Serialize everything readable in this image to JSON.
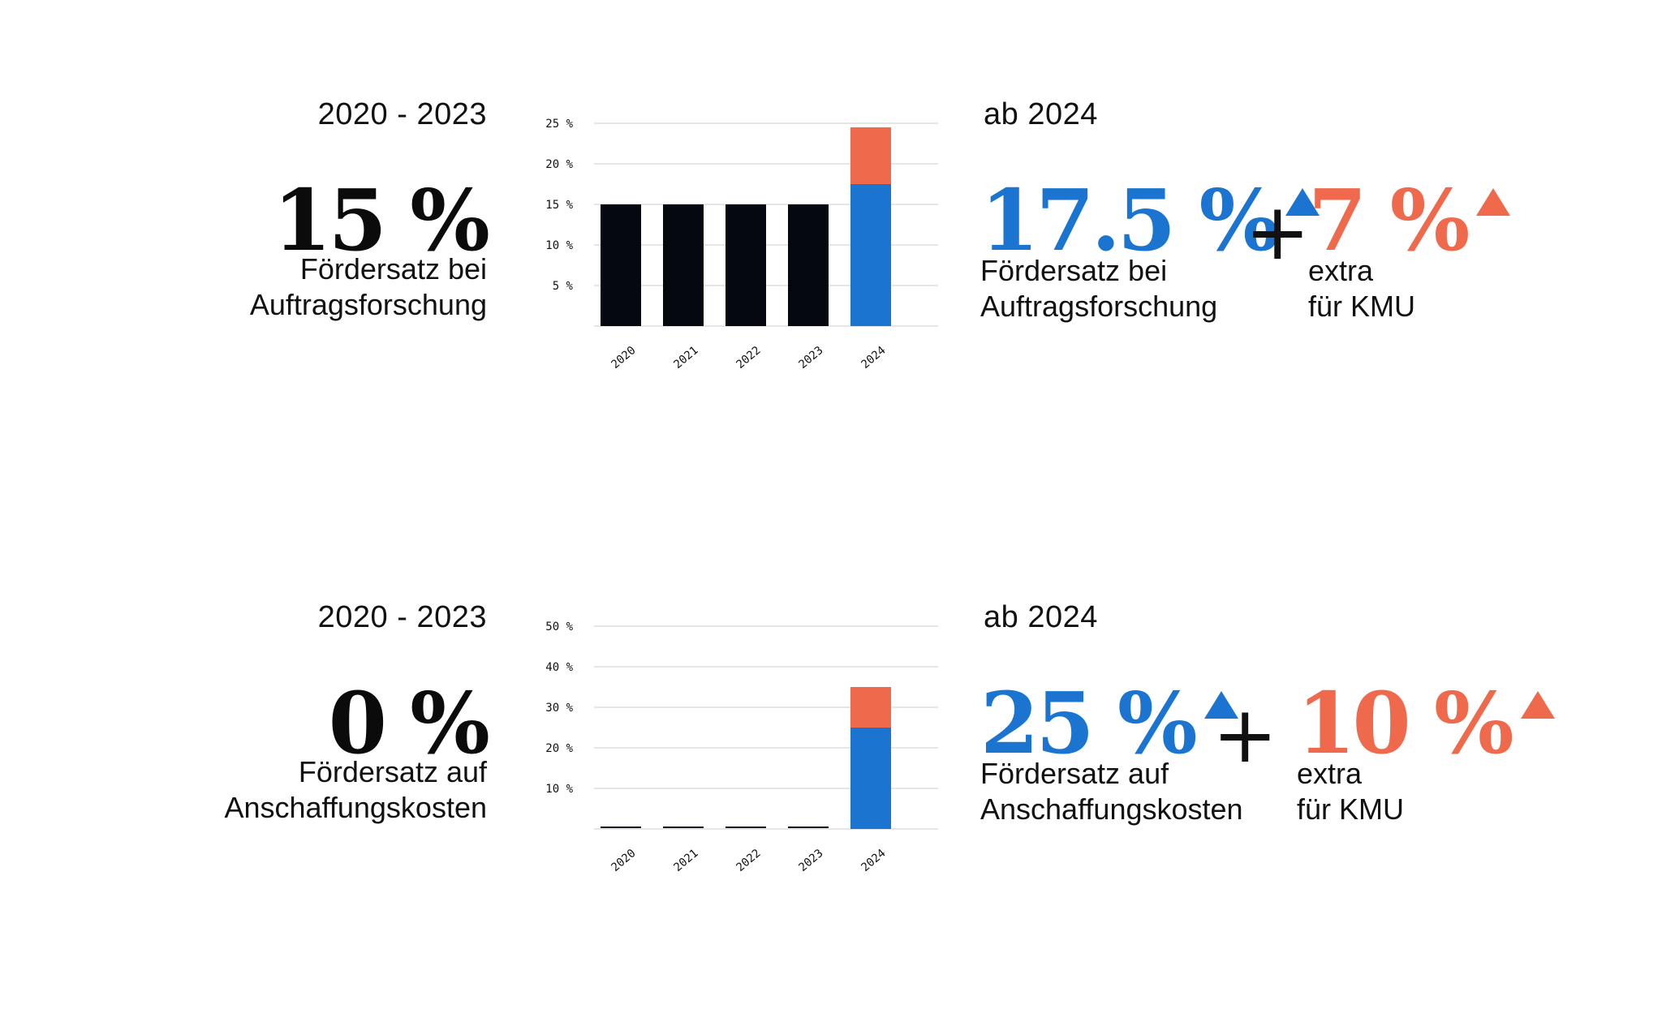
{
  "panels": [
    {
      "period_before": "2020 - 2023",
      "rate_before": "15 %",
      "desc_before": [
        "Fördersatz bei",
        "Auftragsforschung"
      ],
      "period_after": "ab 2024",
      "rate_after": "17.5 %",
      "desc_after": [
        "Fördersatz bei",
        "Auftragsforschung"
      ],
      "plus": "+",
      "extra_rate": "7 %",
      "extra_desc": [
        "extra",
        "für KMU"
      ]
    },
    {
      "period_before": "2020 - 2023",
      "rate_before": "0 %",
      "desc_before": [
        "Fördersatz auf",
        "Anschaffungskosten"
      ],
      "period_after": "ab 2024",
      "rate_after": "25 %",
      "desc_after": [
        "Fördersatz auf",
        "Anschaffungskosten"
      ],
      "plus": "+",
      "extra_rate": "10 %",
      "extra_desc": [
        "extra",
        "für KMU"
      ]
    }
  ],
  "colors": {
    "base": "#05080f",
    "blue": "#1b75d0",
    "orange": "#ef6a4c",
    "grid": "#e6e6e6"
  },
  "chart_data": [
    {
      "type": "bar",
      "stacked": true,
      "categories": [
        "2020",
        "2021",
        "2022",
        "2023",
        "2024"
      ],
      "series": [
        {
          "values": [
            15,
            15,
            15,
            15,
            0
          ],
          "color": "#05080f"
        },
        {
          "values": [
            0,
            0,
            0,
            0,
            17.5
          ],
          "color": "#1b75d0"
        },
        {
          "values": [
            0,
            0,
            0,
            0,
            7
          ],
          "color": "#ef6a4c"
        }
      ],
      "yticks": [
        "5 %",
        "10 %",
        "15 %",
        "20 %",
        "25 %"
      ],
      "ytick_values": [
        5,
        10,
        15,
        20,
        25
      ],
      "ylim": [
        0,
        25
      ],
      "grid": true,
      "title": "",
      "xlabel": "",
      "ylabel": ""
    },
    {
      "type": "bar",
      "stacked": true,
      "categories": [
        "2020",
        "2021",
        "2022",
        "2023",
        "2024"
      ],
      "series": [
        {
          "values": [
            0,
            0,
            0,
            0,
            0
          ],
          "color": "#05080f"
        },
        {
          "values": [
            0,
            0,
            0,
            0,
            25
          ],
          "color": "#1b75d0"
        },
        {
          "values": [
            0,
            0,
            0,
            0,
            10
          ],
          "color": "#ef6a4c"
        }
      ],
      "yticks": [
        "10 %",
        "20 %",
        "30 %",
        "40 %",
        "50 %"
      ],
      "ytick_values": [
        10,
        20,
        30,
        40,
        50
      ],
      "ylim": [
        0,
        50
      ],
      "grid": true,
      "title": "",
      "xlabel": "",
      "ylabel": ""
    }
  ]
}
